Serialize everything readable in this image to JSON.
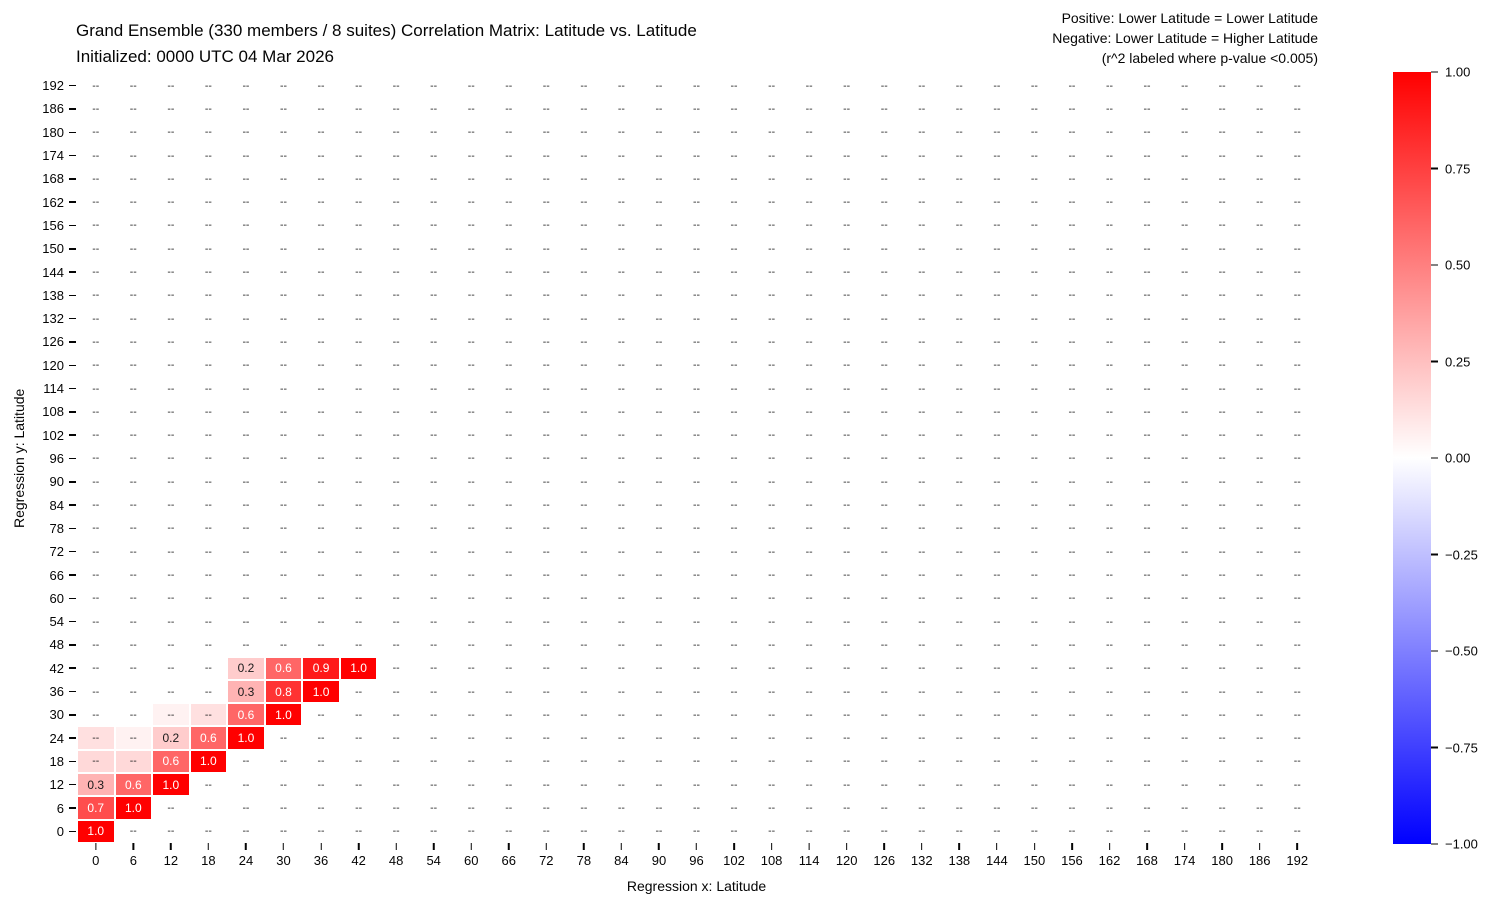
{
  "header": {
    "title_line1": "Grand Ensemble (330 members / 8 suites) Correlation Matrix: Latitude vs. Latitude",
    "title_line2": "Initialized: 0000 UTC 04 Mar 2026",
    "annotation_line1": "Positive: Lower Latitude = Lower Latitude",
    "annotation_line2": "Negative: Lower Latitude = Higher Latitude",
    "annotation_line3": "(r^2 labeled where p-value <0.005)"
  },
  "chart_data": {
    "type": "heatmap",
    "xlabel": "Regression x: Latitude",
    "ylabel": "Regression y: Latitude",
    "x_ticks": [
      0,
      6,
      12,
      18,
      24,
      30,
      36,
      42,
      48,
      54,
      60,
      66,
      72,
      78,
      84,
      90,
      96,
      102,
      108,
      114,
      120,
      126,
      132,
      138,
      144,
      150,
      156,
      162,
      168,
      174,
      180,
      186,
      192
    ],
    "y_ticks": [
      192,
      186,
      180,
      174,
      168,
      162,
      156,
      150,
      144,
      138,
      132,
      126,
      120,
      114,
      108,
      102,
      96,
      90,
      84,
      78,
      72,
      66,
      60,
      54,
      48,
      42,
      36,
      30,
      24,
      18,
      12,
      6,
      0
    ],
    "value_range": [
      -1.0,
      1.0
    ],
    "empty_label": "--",
    "colormap": {
      "negative": "#0000ff",
      "zero": "#ffffff",
      "positive": "#ff0000"
    },
    "label_dark_color": "#1a1a1a",
    "label_light_color": "#ffffff",
    "colorbar_ticks": [
      {
        "value": 1.0,
        "label": "1.00"
      },
      {
        "value": 0.75,
        "label": "0.75"
      },
      {
        "value": 0.5,
        "label": "0.50"
      },
      {
        "value": 0.25,
        "label": "0.25"
      },
      {
        "value": 0.0,
        "label": "0.00"
      },
      {
        "value": -0.25,
        "label": "−0.25"
      },
      {
        "value": -0.5,
        "label": "−0.50"
      },
      {
        "value": -0.75,
        "label": "−0.75"
      },
      {
        "value": -1.0,
        "label": "−1.00"
      }
    ],
    "cells": [
      {
        "x": 0,
        "y": 0,
        "v": 1.0,
        "label": "1.0"
      },
      {
        "x": 0,
        "y": 6,
        "v": 0.7,
        "label": "0.7"
      },
      {
        "x": 6,
        "y": 6,
        "v": 1.0,
        "label": "1.0"
      },
      {
        "x": 0,
        "y": 12,
        "v": 0.3,
        "label": "0.3"
      },
      {
        "x": 6,
        "y": 12,
        "v": 0.6,
        "label": "0.6"
      },
      {
        "x": 12,
        "y": 12,
        "v": 1.0,
        "label": "1.0"
      },
      {
        "x": 0,
        "y": 18,
        "v": 0.15,
        "label": null
      },
      {
        "x": 6,
        "y": 18,
        "v": 0.15,
        "label": null
      },
      {
        "x": 12,
        "y": 18,
        "v": 0.6,
        "label": "0.6"
      },
      {
        "x": 18,
        "y": 18,
        "v": 1.0,
        "label": "1.0"
      },
      {
        "x": 0,
        "y": 24,
        "v": 0.12,
        "label": null
      },
      {
        "x": 6,
        "y": 24,
        "v": 0.05,
        "label": null
      },
      {
        "x": 12,
        "y": 24,
        "v": 0.2,
        "label": "0.2"
      },
      {
        "x": 18,
        "y": 24,
        "v": 0.6,
        "label": "0.6"
      },
      {
        "x": 24,
        "y": 24,
        "v": 1.0,
        "label": "1.0"
      },
      {
        "x": 12,
        "y": 30,
        "v": 0.05,
        "label": null
      },
      {
        "x": 18,
        "y": 30,
        "v": 0.12,
        "label": null
      },
      {
        "x": 24,
        "y": 30,
        "v": 0.6,
        "label": "0.6"
      },
      {
        "x": 30,
        "y": 30,
        "v": 1.0,
        "label": "1.0"
      },
      {
        "x": 24,
        "y": 36,
        "v": 0.3,
        "label": "0.3"
      },
      {
        "x": 30,
        "y": 36,
        "v": 0.8,
        "label": "0.8"
      },
      {
        "x": 36,
        "y": 36,
        "v": 1.0,
        "label": "1.0"
      },
      {
        "x": 24,
        "y": 42,
        "v": 0.2,
        "label": "0.2"
      },
      {
        "x": 30,
        "y": 42,
        "v": 0.6,
        "label": "0.6"
      },
      {
        "x": 36,
        "y": 42,
        "v": 0.9,
        "label": "0.9"
      },
      {
        "x": 42,
        "y": 42,
        "v": 1.0,
        "label": "1.0"
      }
    ]
  }
}
